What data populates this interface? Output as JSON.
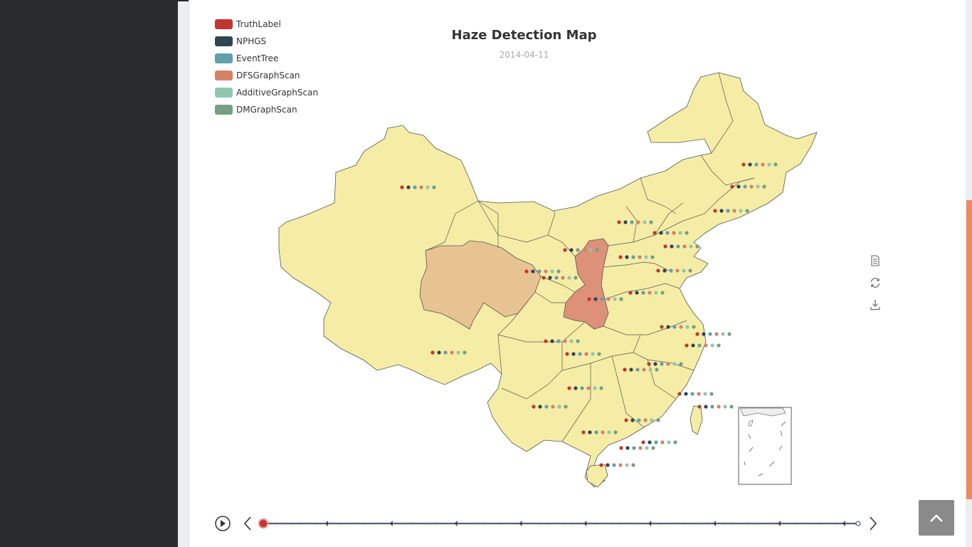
{
  "chart_title": "Haze Detection Map",
  "chart_subtitle": "2014-04-11",
  "legend": [
    {
      "name": "TruthLabel",
      "color": "#c23531"
    },
    {
      "name": "NPHGS",
      "color": "#2f4554"
    },
    {
      "name": "EventTree",
      "color": "#61a0a8"
    },
    {
      "name": "DFSGraphScan",
      "color": "#d48265"
    },
    {
      "name": "AdditiveGraphScan",
      "color": "#91c7ae"
    },
    {
      "name": "DMGraphScan",
      "color": "#749f83"
    }
  ],
  "region_colors": {
    "default": "#f5eda5",
    "qinghai": "#e8c392",
    "shaanxi": "#de9179",
    "border": "#555555"
  },
  "highlighted_regions": [
    "Qinghai",
    "Shaanxi"
  ],
  "timeline": {
    "current_index": 0,
    "marker_count": 10
  },
  "icons": {
    "toolbox": [
      "data-view-icon",
      "restore-icon",
      "save-image-icon"
    ],
    "timeline": [
      "play-icon",
      "prev-icon",
      "next-icon"
    ],
    "scroll": "chevron-up-icon"
  }
}
